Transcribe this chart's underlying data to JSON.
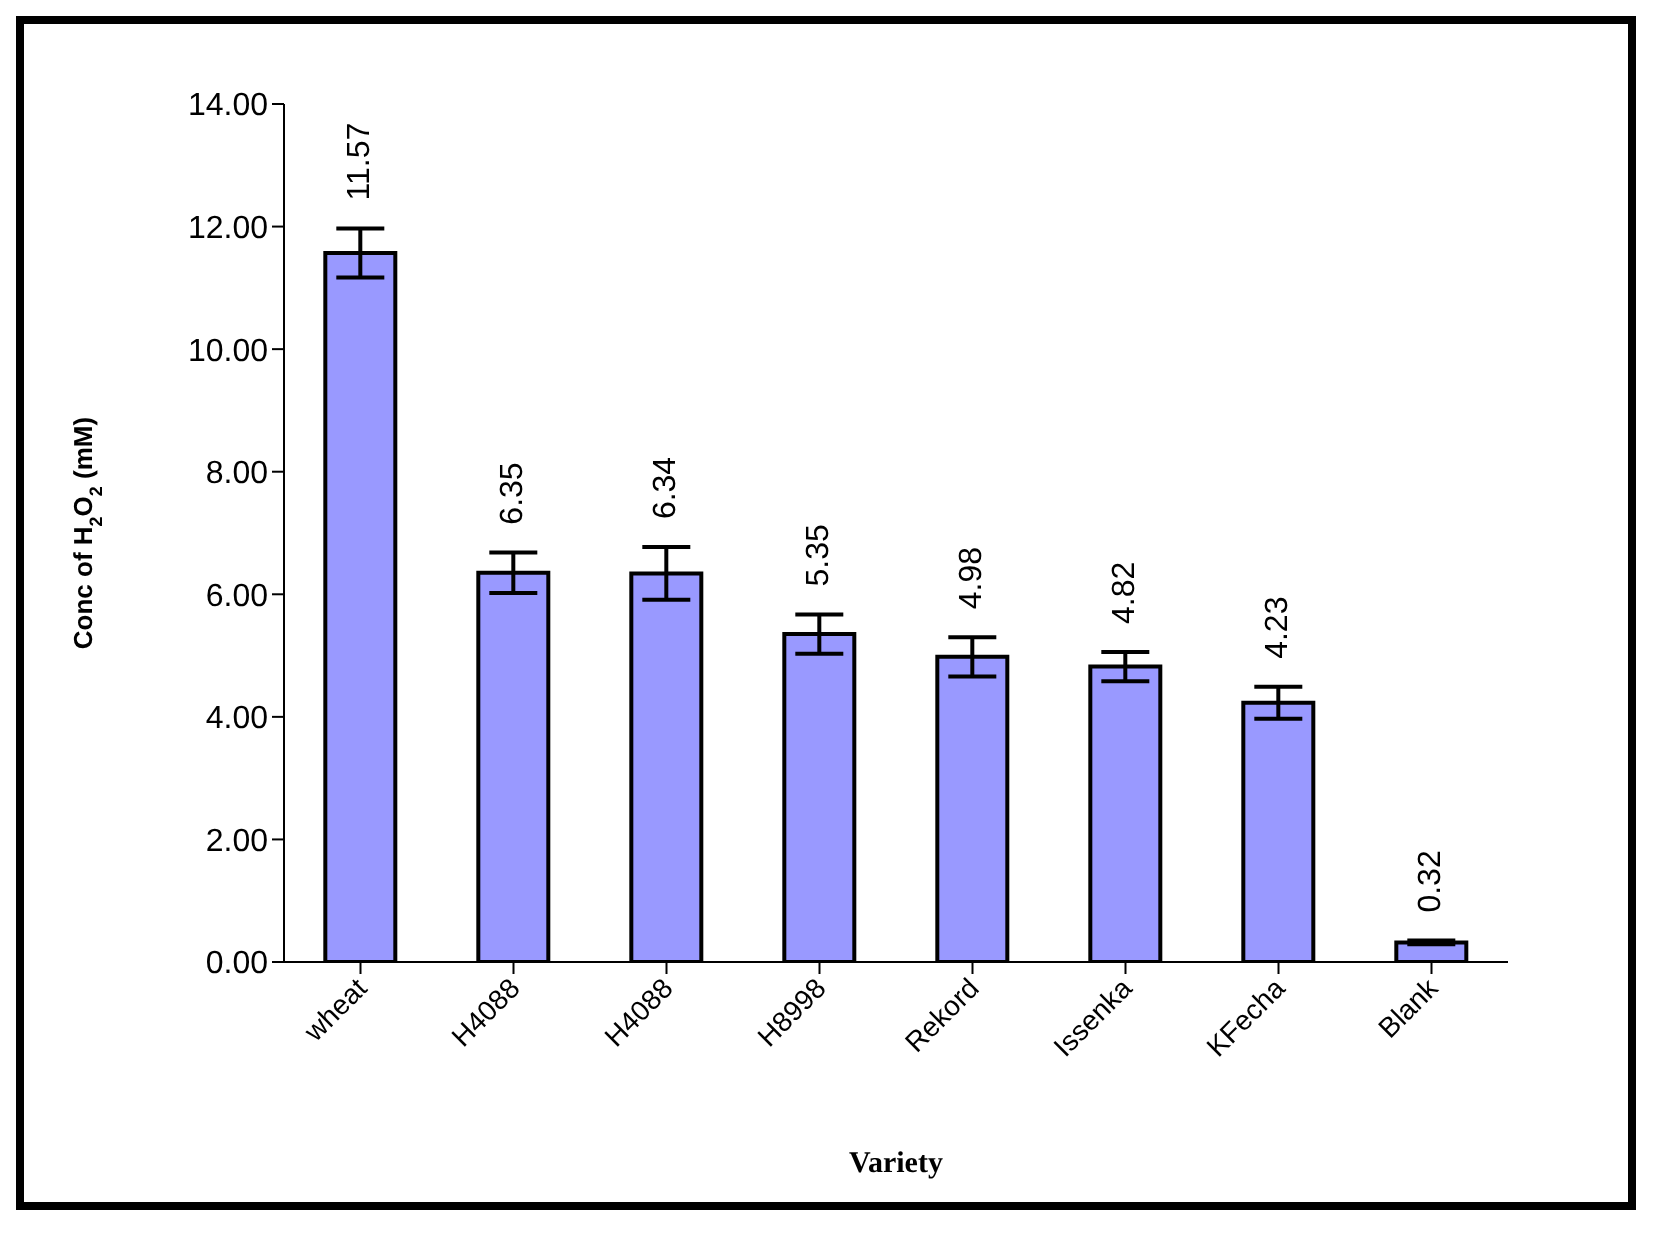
{
  "chart_data": {
    "type": "bar",
    "xlabel": "Variety",
    "ylabel": "Conc of H$_{2}$O$_{2}$ (mM)",
    "categories": [
      "wheat",
      "H4088",
      "H4088",
      "H8998",
      "Rekord",
      "Issenka",
      "KFecha",
      "Blank"
    ],
    "values": [
      11.57,
      6.35,
      6.34,
      5.35,
      4.98,
      4.82,
      4.23,
      0.32
    ],
    "errors": [
      0.4,
      0.33,
      0.43,
      0.32,
      0.32,
      0.24,
      0.26,
      0.03
    ],
    "color": "#9999ff",
    "ylim": [
      0,
      14
    ],
    "yticks": [
      {
        "value": 0,
        "label": "0.00"
      },
      {
        "value": 2,
        "label": "2.00"
      },
      {
        "value": 4,
        "label": "4.00"
      },
      {
        "value": 6,
        "label": "6.00"
      },
      {
        "value": 8,
        "label": "8.00"
      },
      {
        "value": 10,
        "label": "10.00"
      },
      {
        "value": 12,
        "label": "12.00"
      },
      {
        "value": 14,
        "label": "14.00"
      }
    ],
    "grid": false,
    "legend": false,
    "data_labels": true
  }
}
